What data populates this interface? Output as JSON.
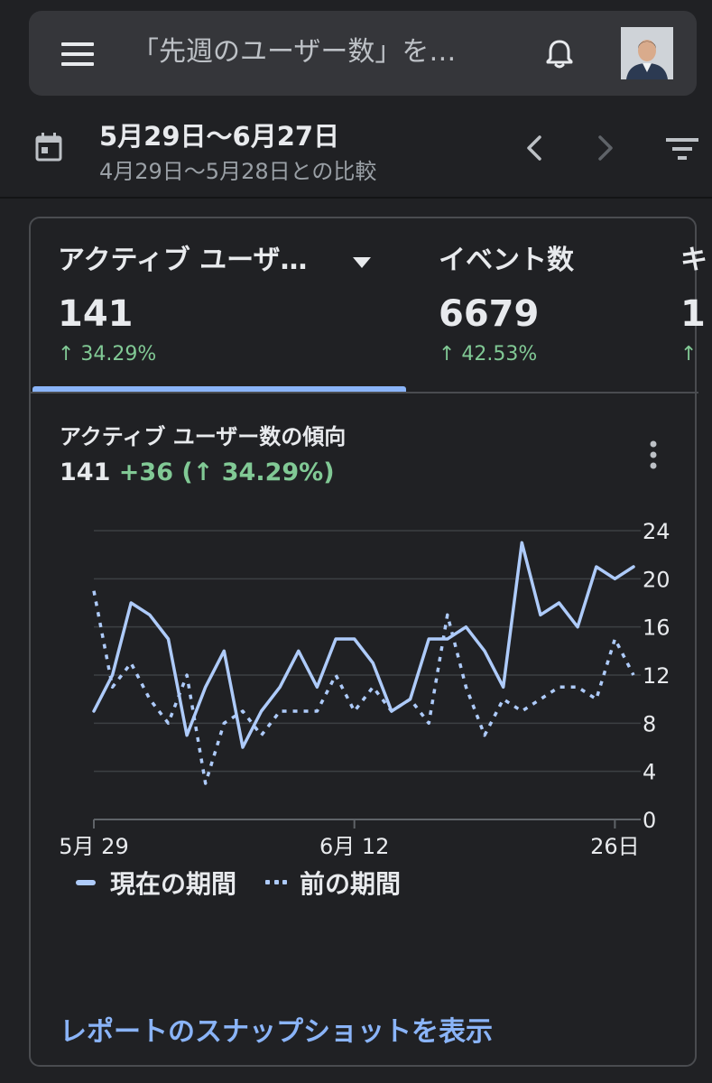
{
  "search": {
    "placeholder": "「先週のユーザー数」を…"
  },
  "date_range": {
    "main": "5月29日〜6月27日",
    "comparison": "4月29日〜5月28日との比較"
  },
  "metrics": [
    {
      "title": "アクティブ ユーザ…",
      "value": "141",
      "change": "↑ 34.29%"
    },
    {
      "title": "イベント数",
      "value": "6679",
      "change": "↑ 42.53%"
    },
    {
      "title": "キ",
      "value": "1",
      "change": "↑"
    }
  ],
  "chart_card": {
    "title": "アクティブ ユーザー数の傾向",
    "summary_total": "141",
    "summary_delta": "+36 (↑ 34.29%)"
  },
  "chart_data": {
    "type": "line",
    "x_tick_labels": [
      "5月 29",
      "6月 12",
      "26日"
    ],
    "y_ticks": [
      0,
      4,
      8,
      12,
      16,
      20,
      24
    ],
    "ylim": [
      0,
      24
    ],
    "grid": true,
    "legend_position": "bottom-left",
    "series": [
      {
        "name": "現在の期間",
        "style": "solid",
        "color": "#aecbfa",
        "values": [
          9,
          12,
          18,
          17,
          15,
          7,
          11,
          14,
          6,
          9,
          11,
          14,
          11,
          15,
          15,
          13,
          9,
          10,
          15,
          15,
          16,
          14,
          11,
          23,
          17,
          18,
          16,
          21,
          20,
          21
        ]
      },
      {
        "name": "前の期間",
        "style": "dotted",
        "color": "#aecbfa",
        "values": [
          19,
          11,
          13,
          10,
          8,
          12,
          3,
          8,
          9,
          7,
          9,
          9,
          9,
          12,
          9,
          11,
          9,
          10,
          8,
          17,
          11,
          7,
          10,
          9,
          10,
          11,
          11,
          10,
          15,
          12
        ]
      }
    ]
  },
  "legend": {
    "current": "現在の期間",
    "previous": "前の期間"
  },
  "report_link": "レポートのスナップショットを表示"
}
